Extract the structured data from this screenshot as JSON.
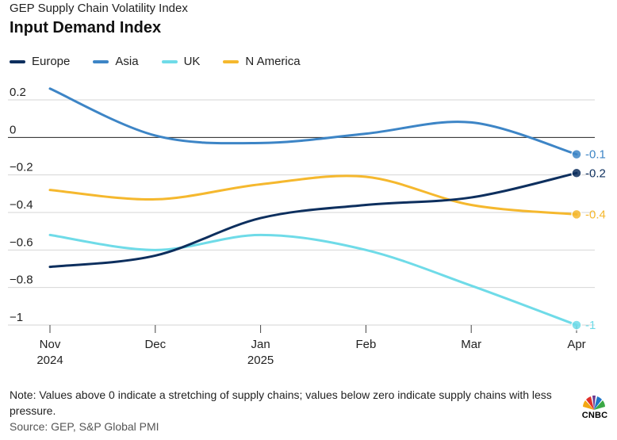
{
  "header": {
    "subtitle": "GEP Supply Chain Volatility Index",
    "title": "Input Demand Index"
  },
  "chart_data": {
    "type": "line",
    "categories": [
      "Nov 2024",
      "Dec",
      "Jan 2025",
      "Feb",
      "Mar",
      "Apr"
    ],
    "x_tick_labels": [
      {
        "line1": "Nov",
        "line2": "2024"
      },
      {
        "line1": "Dec",
        "line2": ""
      },
      {
        "line1": "Jan",
        "line2": "2025"
      },
      {
        "line1": "Feb",
        "line2": ""
      },
      {
        "line1": "Mar",
        "line2": ""
      },
      {
        "line1": "Apr",
        "line2": ""
      }
    ],
    "ylim": [
      -1,
      0.2
    ],
    "y_ticks": [
      0.2,
      0,
      -0.2,
      -0.4,
      -0.6,
      -0.8,
      -1
    ],
    "y_tick_labels": [
      "0.2",
      "0",
      "−0.2",
      "−0.4",
      "−0.6",
      "−0.8",
      "−1"
    ],
    "grid": true,
    "legend_position": "top-left",
    "series": [
      {
        "name": "Europe",
        "color": "#0d2f5e",
        "values": [
          -0.69,
          -0.63,
          -0.43,
          -0.36,
          -0.32,
          -0.19
        ],
        "end_label": "-0.2"
      },
      {
        "name": "Asia",
        "color": "#3d85c6",
        "values": [
          0.26,
          0.01,
          -0.03,
          0.02,
          0.08,
          -0.09
        ],
        "end_label": "-0.1"
      },
      {
        "name": "UK",
        "color": "#6fdbe8",
        "values": [
          -0.52,
          -0.6,
          -0.52,
          -0.6,
          -0.79,
          -1.0
        ],
        "end_label": "-1"
      },
      {
        "name": "N America",
        "color": "#f5b82e",
        "values": [
          -0.28,
          -0.33,
          -0.25,
          -0.21,
          -0.36,
          -0.41
        ],
        "end_label": "-0.4"
      }
    ]
  },
  "footer": {
    "note": "Note: Values above 0 indicate a stretching of supply chains; values below zero indicate supply chains with less pressure.",
    "source": "Source: GEP, S&P Global PMI",
    "logo_text": "CNBC"
  }
}
